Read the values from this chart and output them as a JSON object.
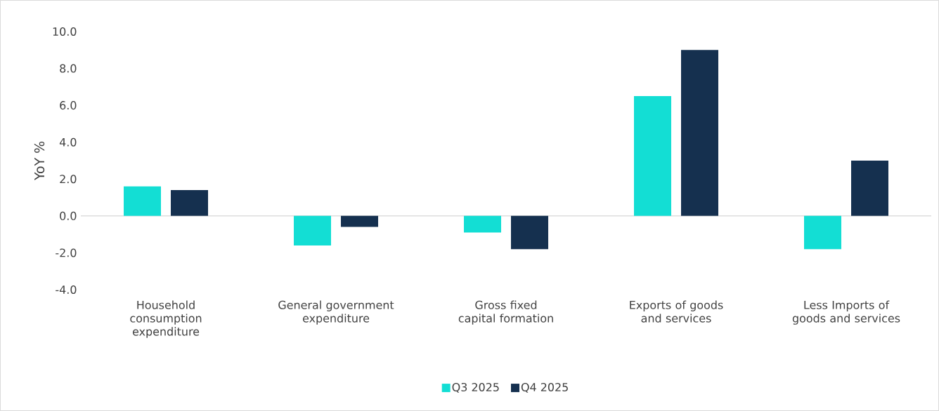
{
  "chart_data": {
    "type": "bar",
    "ylabel": "YoY %",
    "categories": [
      "Household consumption expenditure",
      "General government expenditure",
      "Gross fixed capital formation",
      "Exports of goods and services",
      "Less Imports of goods and services"
    ],
    "series": [
      {
        "name": "Q3 2025",
        "color": "#13ded4",
        "values": [
          1.6,
          -1.6,
          -0.9,
          6.5,
          -1.8
        ]
      },
      {
        "name": "Q4 2025",
        "color": "#15304f",
        "values": [
          1.4,
          -0.6,
          -1.8,
          9.0,
          3.0
        ]
      }
    ],
    "ylim": [
      -4,
      10
    ],
    "yticks": [
      {
        "value": -4,
        "label": "-4.0"
      },
      {
        "value": -2,
        "label": "-2.0"
      },
      {
        "value": 0,
        "label": "0.0"
      },
      {
        "value": 2,
        "label": "2.0"
      },
      {
        "value": 4,
        "label": "4.0"
      },
      {
        "value": 6,
        "label": "6.0"
      },
      {
        "value": 8,
        "label": "8.0"
      },
      {
        "value": 10,
        "label": "10.0"
      }
    ],
    "legend": "bottom"
  }
}
